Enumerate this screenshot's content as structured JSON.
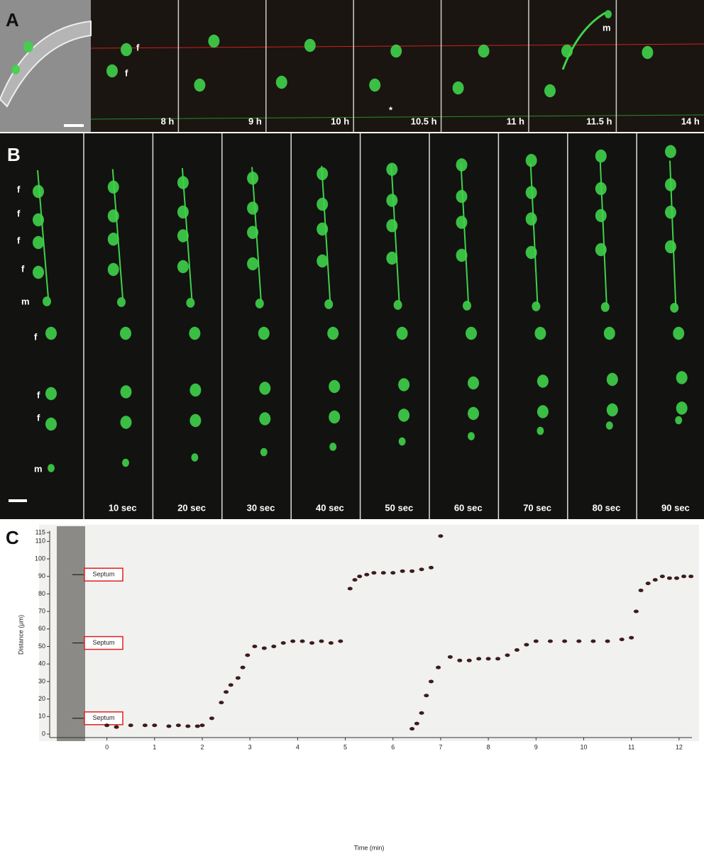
{
  "panel_a": {
    "label": "A",
    "timepoints": [
      "8 h",
      "9 h",
      "10 h",
      "10.5 h",
      "11 h",
      "11.5 h",
      "14 h"
    ],
    "annotations": [
      "f",
      "f",
      "m",
      "*"
    ]
  },
  "panel_b": {
    "label": "B",
    "cell_labels": [
      "f",
      "f",
      "f",
      "f",
      "m",
      "f",
      "f",
      "f",
      "m"
    ],
    "timepoints": [
      "10 sec",
      "20 sec",
      "30 sec",
      "40 sec",
      "50 sec",
      "60 sec",
      "70 sec",
      "80 sec",
      "90 sec"
    ]
  },
  "panel_c": {
    "label": "C",
    "septum_labels": [
      "Septum",
      "Septum",
      "Septum"
    ]
  },
  "chart_data": {
    "type": "scatter",
    "xlabel": "Time (min)",
    "ylabel": "Distance (µm)",
    "xlim": [
      -1.2,
      12.27
    ],
    "ylim": [
      -2,
      116
    ],
    "xticks": [
      0,
      1,
      2,
      3,
      4,
      5,
      6,
      7,
      8,
      9,
      10,
      11,
      12
    ],
    "yticks": [
      0,
      10,
      20,
      30,
      40,
      50,
      60,
      70,
      80,
      90,
      100,
      110,
      115
    ],
    "series": [
      {
        "color": "#3b1c1c",
        "x": [
          0,
          0.2,
          0.5,
          0.8,
          1,
          1.3,
          1.5,
          1.7,
          1.9,
          2.0,
          2.2,
          2.4,
          2.5,
          2.6,
          2.75,
          2.85,
          2.95,
          3.1,
          3.3,
          3.5,
          3.7,
          3.9,
          4.1,
          4.3,
          4.5,
          4.7,
          4.9,
          5.1,
          5.2,
          5.3,
          5.45,
          5.6,
          5.8,
          6.0,
          6.2,
          6.4,
          6.6,
          6.8,
          7.0
        ],
        "values": [
          5,
          4,
          5,
          5,
          5,
          4.5,
          5,
          4.5,
          4.5,
          5,
          9,
          18,
          24,
          28,
          32,
          38,
          45,
          50,
          49,
          50,
          52,
          53,
          53,
          52,
          53,
          52,
          53,
          83,
          88,
          90,
          91,
          92,
          92,
          92,
          93,
          93,
          94,
          95,
          113
        ]
      },
      {
        "color": "#3b1c1c",
        "x": [
          6.4,
          6.5,
          6.6,
          6.7,
          6.8,
          6.95,
          7.2,
          7.4,
          7.6,
          7.8,
          8.0,
          8.2,
          8.4,
          8.6,
          8.8,
          9.0,
          9.3,
          9.6,
          9.9,
          10.2,
          10.5,
          10.8,
          11.0,
          11.1,
          11.2,
          11.35,
          11.5,
          11.65,
          11.8,
          11.95,
          12.1,
          12.25
        ],
        "values": [
          3,
          6,
          12,
          22,
          30,
          38,
          44,
          42,
          42,
          43,
          43,
          43,
          45,
          48,
          51,
          53,
          53,
          53,
          53,
          53,
          53,
          54,
          55,
          70,
          82,
          86,
          88,
          90,
          89,
          89,
          90,
          90
        ]
      }
    ]
  }
}
